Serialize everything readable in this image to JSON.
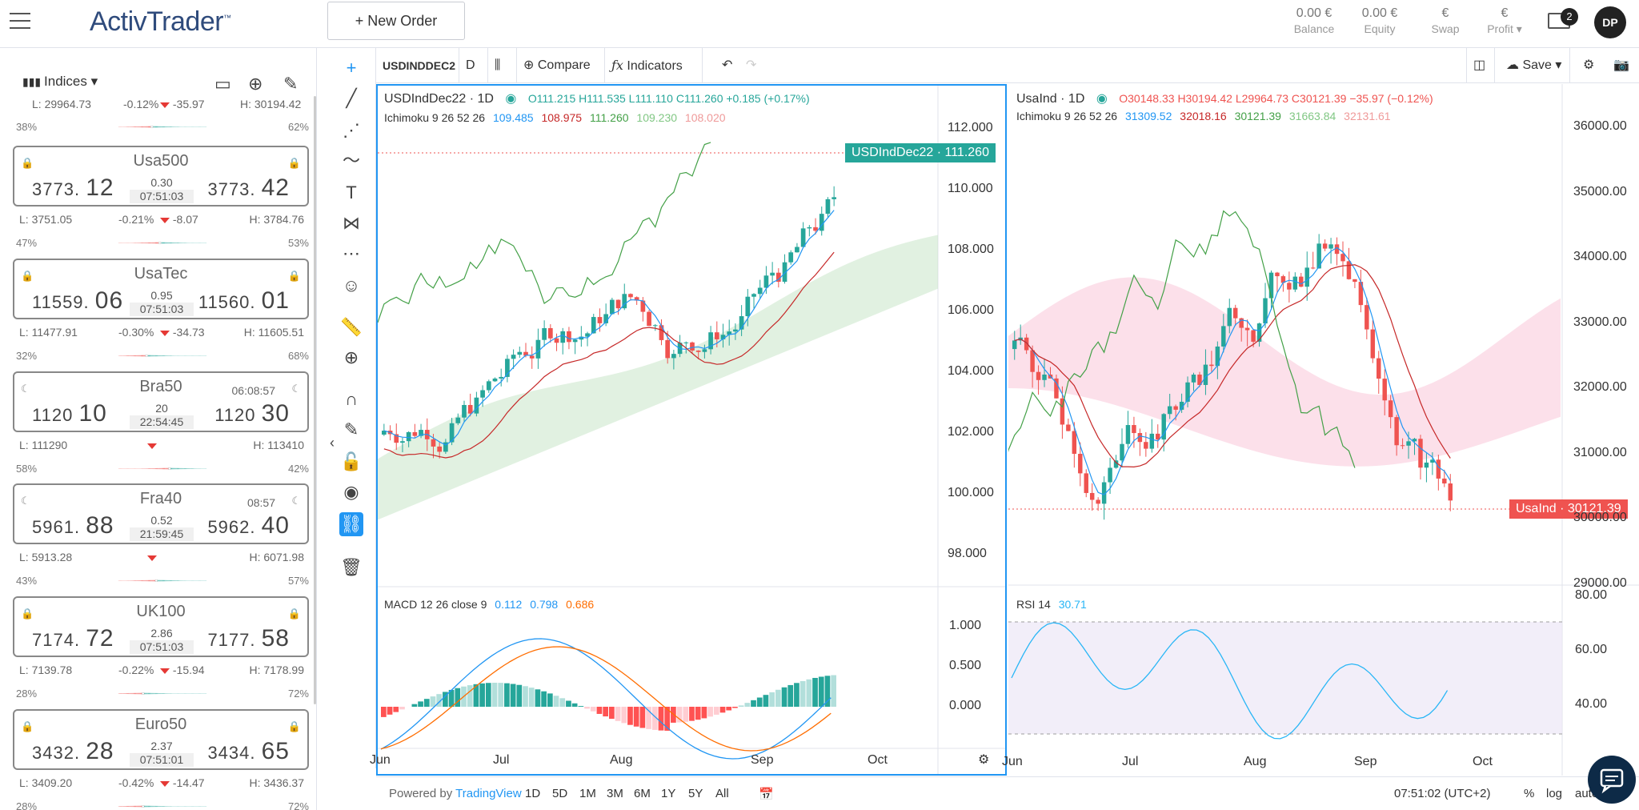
{
  "header": {
    "logo": "ActivTrader",
    "logo_tm": "™",
    "new_order": "+ New Order",
    "account": [
      {
        "value": "0.00 €",
        "label": "Balance"
      },
      {
        "value": "0.00 €",
        "label": "Equity"
      },
      {
        "value": "€",
        "label": "Swap"
      },
      {
        "value": "€",
        "label": "Profit"
      }
    ],
    "mail_count": "2",
    "avatar": "DP"
  },
  "sidebar": {
    "category": "Indices",
    "top_stats": {
      "low": "L: 29964.73",
      "change": "-0.12%",
      "delta": "-35.97",
      "high": "H: 30194.42",
      "left_pct": "38%",
      "right_pct": "62%"
    },
    "instruments": [
      {
        "name": "Usa500",
        "bid_main": "3773.",
        "bid_big": "12",
        "ask_main": "3773.",
        "ask_big": "42",
        "spread": "0.30",
        "time": "07:51:03",
        "low": "L: 3751.05",
        "change": "-0.21%",
        "delta": "-8.07",
        "high": "H: 3784.76",
        "left_pct": "47%",
        "right_pct": "53%",
        "sentiment": 0.47,
        "closed": false
      },
      {
        "name": "UsaTec",
        "bid_main": "11559.",
        "bid_big": "06",
        "ask_main": "11560.",
        "ask_big": "01",
        "spread": "0.95",
        "time": "07:51:03",
        "low": "L: 11477.91",
        "change": "-0.30%",
        "delta": "-34.73",
        "high": "H: 11605.51",
        "left_pct": "32%",
        "right_pct": "68%",
        "sentiment": 0.32,
        "closed": false
      },
      {
        "name": "Bra50",
        "bid_main": "1120",
        "bid_big": "10",
        "ask_main": "1120",
        "ask_big": "30",
        "spread": "20",
        "time": "22:54:45",
        "extra": "06:08:57",
        "low": "L: 111290",
        "change": "",
        "delta": "",
        "high": "H: 113410",
        "left_pct": "58%",
        "right_pct": "42%",
        "sentiment": 0.58,
        "closed": true
      },
      {
        "name": "Fra40",
        "bid_main": "5961.",
        "bid_big": "88",
        "ask_main": "5962.",
        "ask_big": "40",
        "spread": "0.52",
        "time": "21:59:45",
        "extra": "08:57",
        "low": "L: 5913.28",
        "change": "",
        "delta": "",
        "high": "H: 6071.98",
        "left_pct": "43%",
        "right_pct": "57%",
        "sentiment": 0.43,
        "closed": true
      },
      {
        "name": "UK100",
        "bid_main": "7174.",
        "bid_big": "72",
        "ask_main": "7177.",
        "ask_big": "58",
        "spread": "2.86",
        "time": "07:51:03",
        "low": "L: 7139.78",
        "change": "-0.22%",
        "delta": "-15.94",
        "high": "H: 7178.99",
        "left_pct": "28%",
        "right_pct": "72%",
        "sentiment": 0.28,
        "closed": false
      },
      {
        "name": "Euro50",
        "bid_main": "3432.",
        "bid_big": "28",
        "ask_main": "3434.",
        "ask_big": "65",
        "spread": "2.37",
        "time": "07:51:01",
        "low": "L: 3409.20",
        "change": "-0.42%",
        "delta": "-14.47",
        "high": "H: 3436.37",
        "left_pct": "28%",
        "right_pct": "72%",
        "sentiment": 0.28,
        "closed": false
      }
    ]
  },
  "toolbar": {
    "symbol": "USDINDDEC2",
    "interval": "D",
    "compare": "Compare",
    "indicators": "Indicators",
    "save": "Save"
  },
  "chart_left": {
    "legend_title": "USDIndDec22 · 1D",
    "o": "O111.215",
    "h": "H111.535",
    "l": "L111.110",
    "c": "C111.260",
    "chg": "+0.185 (+0.17%)",
    "ichimoku": "Ichimoku 9 26 52 26",
    "ichi_vals": [
      "109.485",
      "108.975",
      "111.260",
      "109.230",
      "108.020"
    ],
    "ichi_colors": [
      "#2196f3",
      "#c62828",
      "#43a047",
      "#81c784",
      "#ef9a9a"
    ],
    "price_tag": "USDIndDec22",
    "price_tag_val": "111.260",
    "y_ticks": [
      "112.000",
      "110.000",
      "108.000",
      "106.000",
      "104.000",
      "102.000",
      "100.000",
      "98.000"
    ],
    "macd_label": "MACD 12 26 close 9",
    "macd_vals": [
      "0.112",
      "0.798",
      "0.686"
    ],
    "macd_ticks": [
      "1.000",
      "0.500",
      "0.000"
    ],
    "x_ticks": [
      "Jun",
      "Jul",
      "Aug",
      "Sep",
      "Oct"
    ]
  },
  "chart_right": {
    "legend_title": "UsaInd · 1D",
    "o": "O30148.33",
    "h": "H30194.42",
    "l": "L29964.73",
    "c": "C30121.39",
    "chg": "−35.97 (−0.12%)",
    "ichimoku": "Ichimoku 9 26 52 26",
    "ichi_vals": [
      "31309.52",
      "32018.16",
      "30121.39",
      "31663.84",
      "32131.61"
    ],
    "price_tag": "UsaInd",
    "price_tag_val": "30121.39",
    "y_ticks": [
      "36000.00",
      "35000.00",
      "34000.00",
      "33000.00",
      "32000.00",
      "31000.00",
      "30000.00",
      "29000.00"
    ],
    "rsi_label": "RSI 14",
    "rsi_val": "30.71",
    "rsi_ticks": [
      "80.00",
      "60.00",
      "40.00"
    ],
    "x_ticks": [
      "Jun",
      "Jul",
      "Aug",
      "Sep",
      "Oct"
    ]
  },
  "bottom": {
    "powered": "Powered by",
    "tv": "TradingView",
    "ranges": [
      "1D",
      "5D",
      "1M",
      "3M",
      "6M",
      "1Y",
      "5Y",
      "All"
    ],
    "clock": "07:51:02 (UTC+2)",
    "pct": "%",
    "log": "log",
    "auto": "auto"
  },
  "colors": {
    "up": "#26a69a",
    "down": "#ef5350",
    "accent": "#2196f3"
  }
}
